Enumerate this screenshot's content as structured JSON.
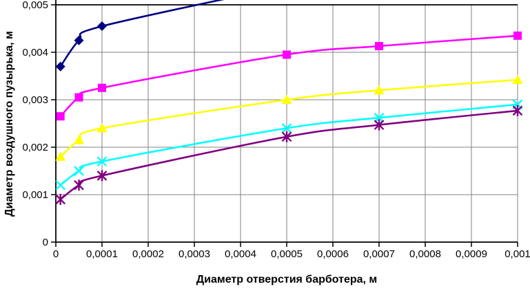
{
  "chart_data": {
    "type": "line",
    "title": "",
    "xlabel": "Диаметр отверстия барботера, м",
    "ylabel": "Диаметр воздушного пузырька, м",
    "xlim": [
      0,
      0.001
    ],
    "ylim": [
      0,
      0.005
    ],
    "grid": true,
    "legend": "none",
    "background": "#FFFFFF",
    "gridline_color": "#808080",
    "axis_color": "#000000",
    "x_ticks": [
      0,
      0.0001,
      0.0002,
      0.0003,
      0.0004,
      0.0005,
      0.0006,
      0.0007,
      0.0008,
      0.0009,
      0.001
    ],
    "x_tick_labels": [
      "0",
      "0,0001",
      "0,0002",
      "0,0003",
      "0,0004",
      "0,0005",
      "0,0006",
      "0,0007",
      "0,0008",
      "0,0009",
      "0,001"
    ],
    "y_ticks": [
      0,
      0.001,
      0.002,
      0.003,
      0.004,
      0.005
    ],
    "y_tick_labels": [
      "0",
      "0,001",
      "0,002",
      "0,003",
      "0,004",
      "0,005"
    ],
    "x": [
      1e-05,
      5e-05,
      0.0001,
      0.0005,
      0.0007,
      0.001
    ],
    "series": [
      {
        "name": "navy-diamond",
        "color": "#000080",
        "marker": "diamond",
        "values": [
          0.0037,
          0.00425,
          0.00455,
          null,
          null,
          null
        ],
        "line_exits_top": true,
        "projected_next": {
          "x": 0.0005,
          "y": 0.0054
        }
      },
      {
        "name": "magenta-square",
        "color": "#FF00FF",
        "marker": "square",
        "values": [
          0.00265,
          0.00305,
          0.00325,
          0.00395,
          0.00413,
          0.00435
        ]
      },
      {
        "name": "yellow-triangle",
        "color": "#FFFF00",
        "marker": "triangle",
        "values": [
          0.0018,
          0.00215,
          0.0024,
          0.003,
          0.0032,
          0.00342
        ]
      },
      {
        "name": "cyan-x",
        "color": "#00FFFF",
        "marker": "x",
        "values": [
          0.0012,
          0.0015,
          0.0017,
          0.0024,
          0.00262,
          0.0029
        ]
      },
      {
        "name": "purple-asterisk",
        "color": "#800080",
        "marker": "asterisk",
        "values": [
          0.0009,
          0.0012,
          0.0014,
          0.00222,
          0.00247,
          0.00277
        ]
      }
    ]
  }
}
